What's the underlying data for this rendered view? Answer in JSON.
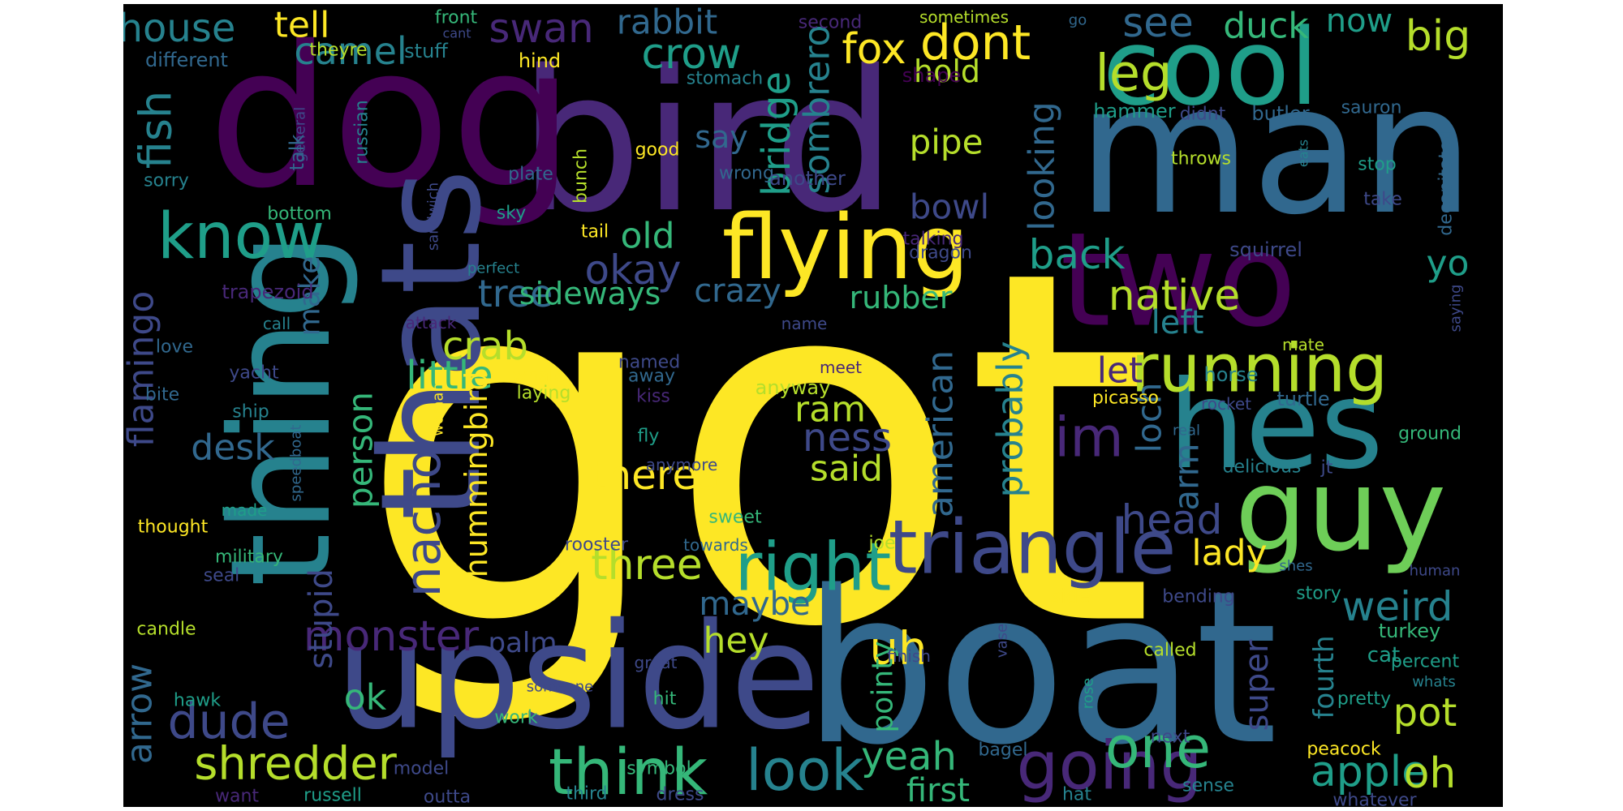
{
  "background": "#000000",
  "palette": [
    "#440154",
    "#482878",
    "#3e4989",
    "#31688e",
    "#26828e",
    "#1f9e89",
    "#35b779",
    "#6ece58",
    "#b5de2b",
    "#fde725"
  ],
  "words": [
    {
      "text": "got",
      "weight": 100,
      "color": "#fde725"
    },
    {
      "text": "boat",
      "weight": 58,
      "color": "#31688e"
    },
    {
      "text": "bird",
      "weight": 52,
      "color": "#482878"
    },
    {
      "text": "dog",
      "weight": 50,
      "color": "#440154"
    },
    {
      "text": "man",
      "weight": 46,
      "color": "#31688e"
    },
    {
      "text": "upside",
      "weight": 40,
      "color": "#3e4989"
    },
    {
      "text": "thats",
      "weight": 38,
      "color": "#3e4989"
    },
    {
      "text": "hes",
      "weight": 36,
      "color": "#26828e"
    },
    {
      "text": "thing",
      "weight": 34,
      "color": "#26828e"
    },
    {
      "text": "two",
      "weight": 33,
      "color": "#440154"
    },
    {
      "text": "cool",
      "weight": 30,
      "color": "#1f9e89"
    },
    {
      "text": "guy",
      "weight": 28,
      "color": "#6ece58"
    },
    {
      "text": "flying",
      "weight": 27,
      "color": "#fde725"
    },
    {
      "text": "triangle",
      "weight": 22,
      "color": "#3e4989"
    },
    {
      "text": "right",
      "weight": 19,
      "color": "#1f9e89"
    },
    {
      "text": "know",
      "weight": 19,
      "color": "#1f9e89"
    },
    {
      "text": "running",
      "weight": 19,
      "color": "#b5de2b"
    },
    {
      "text": "going",
      "weight": 18,
      "color": "#482878"
    },
    {
      "text": "think",
      "weight": 17,
      "color": "#35b779"
    },
    {
      "text": "one",
      "weight": 17,
      "color": "#35b779"
    },
    {
      "text": "look",
      "weight": 16,
      "color": "#26828e"
    },
    {
      "text": "shredder",
      "weight": 14,
      "color": "#b5de2b"
    },
    {
      "text": "im",
      "weight": 15,
      "color": "#482878"
    },
    {
      "text": "nacho",
      "weight": 14,
      "color": "#3e4989"
    },
    {
      "text": "dude",
      "weight": 14,
      "color": "#3e4989"
    },
    {
      "text": "monster",
      "weight": 13,
      "color": "#482878"
    },
    {
      "text": "native",
      "weight": 13,
      "color": "#b5de2b"
    },
    {
      "text": "uh",
      "weight": 14,
      "color": "#fde725"
    },
    {
      "text": "apple",
      "weight": 13,
      "color": "#1f9e89"
    },
    {
      "text": "weird",
      "weight": 12,
      "color": "#26828e"
    },
    {
      "text": "leg",
      "weight": 15,
      "color": "#b5de2b"
    },
    {
      "text": "dont",
      "weight": 15,
      "color": "#fde725"
    },
    {
      "text": "house",
      "weight": 12,
      "color": "#26828e"
    },
    {
      "text": "swan",
      "weight": 12,
      "color": "#482878"
    },
    {
      "text": "rabbit",
      "weight": 11,
      "color": "#31688e"
    },
    {
      "text": "camel",
      "weight": 12,
      "color": "#26828e"
    },
    {
      "text": "crow",
      "weight": 13,
      "color": "#1f9e89"
    },
    {
      "text": "fox",
      "weight": 12,
      "color": "#fde725"
    },
    {
      "text": "see",
      "weight": 12,
      "color": "#31688e"
    },
    {
      "text": "duck",
      "weight": 11,
      "color": "#35b779"
    },
    {
      "text": "now",
      "weight": 10,
      "color": "#1f9e89"
    },
    {
      "text": "big",
      "weight": 13,
      "color": "#b5de2b"
    },
    {
      "text": "tell",
      "weight": 11,
      "color": "#fde725"
    },
    {
      "text": "fish",
      "weight": 13,
      "color": "#26828e"
    },
    {
      "text": "bridge",
      "weight": 12,
      "color": "#1f9e89"
    },
    {
      "text": "sombrero",
      "weight": 11,
      "color": "#26828e"
    },
    {
      "text": "hold",
      "weight": 10,
      "color": "#b5de2b"
    },
    {
      "text": "pipe",
      "weight": 11,
      "color": "#b5de2b"
    },
    {
      "text": "bowl",
      "weight": 11,
      "color": "#3e4989"
    },
    {
      "text": "say",
      "weight": 10,
      "color": "#31688e"
    },
    {
      "text": "back",
      "weight": 12,
      "color": "#1f9e89"
    },
    {
      "text": "looking",
      "weight": 11,
      "color": "#31688e"
    },
    {
      "text": "okay",
      "weight": 12,
      "color": "#3e4989"
    },
    {
      "text": "tree",
      "weight": 12,
      "color": "#31688e"
    },
    {
      "text": "sideways",
      "weight": 9,
      "color": "#35b779"
    },
    {
      "text": "crazy",
      "weight": 10,
      "color": "#31688e"
    },
    {
      "text": "rubber",
      "weight": 10,
      "color": "#35b779"
    },
    {
      "text": "old",
      "weight": 11,
      "color": "#35b779"
    },
    {
      "text": "crab",
      "weight": 12,
      "color": "#b5de2b"
    },
    {
      "text": "little",
      "weight": 12,
      "color": "#35b779"
    },
    {
      "text": "person",
      "weight": 11,
      "color": "#35b779"
    },
    {
      "text": "flamingo",
      "weight": 11,
      "color": "#3e4989"
    },
    {
      "text": "make",
      "weight": 9,
      "color": "#31688e"
    },
    {
      "text": "desk",
      "weight": 11,
      "color": "#31688e"
    },
    {
      "text": "stupid",
      "weight": 10,
      "color": "#3e4989"
    },
    {
      "text": "hummingbird",
      "weight": 10,
      "color": "#fde725"
    },
    {
      "text": "theres",
      "weight": 13,
      "color": "#fde725"
    },
    {
      "text": "ram",
      "weight": 11,
      "color": "#b5de2b"
    },
    {
      "text": "ness",
      "weight": 12,
      "color": "#3e4989"
    },
    {
      "text": "said",
      "weight": 11,
      "color": "#b5de2b"
    },
    {
      "text": "american",
      "weight": 11,
      "color": "#31688e"
    },
    {
      "text": "probably",
      "weight": 11,
      "color": "#26828e"
    },
    {
      "text": "let",
      "weight": 11,
      "color": "#482878"
    },
    {
      "text": "loch",
      "weight": 11,
      "color": "#31688e"
    },
    {
      "text": "arm",
      "weight": 11,
      "color": "#31688e"
    },
    {
      "text": "left",
      "weight": 10,
      "color": "#26828e"
    },
    {
      "text": "yo",
      "weight": 11,
      "color": "#1f9e89"
    },
    {
      "text": "three",
      "weight": 13,
      "color": "#b5de2b"
    },
    {
      "text": "maybe",
      "weight": 10,
      "color": "#31688e"
    },
    {
      "text": "hey",
      "weight": 11,
      "color": "#b5de2b"
    },
    {
      "text": "head",
      "weight": 13,
      "color": "#3e4989"
    },
    {
      "text": "lady",
      "weight": 12,
      "color": "#fde725"
    },
    {
      "text": "super",
      "weight": 11,
      "color": "#3e4989"
    },
    {
      "text": "pot",
      "weight": 12,
      "color": "#b5de2b"
    },
    {
      "text": "oh",
      "weight": 13,
      "color": "#b5de2b"
    },
    {
      "text": "yeah",
      "weight": 12,
      "color": "#35b779"
    },
    {
      "text": "first",
      "weight": 11,
      "color": "#35b779"
    },
    {
      "text": "pointy",
      "weight": 10,
      "color": "#35b779"
    },
    {
      "text": "palm",
      "weight": 9,
      "color": "#3e4989"
    },
    {
      "text": "ok",
      "weight": 11,
      "color": "#35b779"
    },
    {
      "text": "arrow",
      "weight": 11,
      "color": "#31688e"
    },
    {
      "text": "fourth",
      "weight": 9,
      "color": "#26828e"
    },
    {
      "text": "different",
      "weight": 8,
      "color": "#31688e"
    },
    {
      "text": "front",
      "weight": 7,
      "color": "#35b779"
    },
    {
      "text": "hind",
      "weight": 7,
      "color": "#fde725"
    },
    {
      "text": "theyre",
      "weight": 7,
      "color": "#b5de2b"
    },
    {
      "text": "stuff",
      "weight": 7,
      "color": "#26828e"
    },
    {
      "text": "second",
      "weight": 7,
      "color": "#482878"
    },
    {
      "text": "sometimes",
      "weight": 7,
      "color": "#b5de2b"
    },
    {
      "text": "shape",
      "weight": 7,
      "color": "#440154"
    },
    {
      "text": "stomach",
      "weight": 7,
      "color": "#26828e"
    },
    {
      "text": "hammer",
      "weight": 7,
      "color": "#1f9e89"
    },
    {
      "text": "didnt",
      "weight": 7,
      "color": "#3e4989"
    },
    {
      "text": "butler",
      "weight": 7,
      "color": "#31688e"
    },
    {
      "text": "sauron",
      "weight": 7,
      "color": "#31688e"
    },
    {
      "text": "eats",
      "weight": 6,
      "color": "#26828e"
    },
    {
      "text": "throws",
      "weight": 7,
      "color": "#b5de2b"
    },
    {
      "text": "stop",
      "weight": 7,
      "color": "#1f9e89"
    },
    {
      "text": "take",
      "weight": 7,
      "color": "#3e4989"
    },
    {
      "text": "decapitated",
      "weight": 7,
      "color": "#31688e"
    },
    {
      "text": "general",
      "weight": 6,
      "color": "#3e4989"
    },
    {
      "text": "russian",
      "weight": 7,
      "color": "#26828e"
    },
    {
      "text": "talk",
      "weight": 7,
      "color": "#31688e"
    },
    {
      "text": "good",
      "weight": 7,
      "color": "#fde725"
    },
    {
      "text": "plate",
      "weight": 7,
      "color": "#31688e"
    },
    {
      "text": "bunch",
      "weight": 7,
      "color": "#b5de2b"
    },
    {
      "text": "wrong",
      "weight": 7,
      "color": "#31688e"
    },
    {
      "text": "another",
      "weight": 7,
      "color": "#3e4989"
    },
    {
      "text": "sorry",
      "weight": 7,
      "color": "#26828e"
    },
    {
      "text": "bottom",
      "weight": 7,
      "color": "#35b779"
    },
    {
      "text": "sandwich",
      "weight": 6,
      "color": "#3e4989"
    },
    {
      "text": "sky",
      "weight": 7,
      "color": "#1f9e89"
    },
    {
      "text": "tail",
      "weight": 7,
      "color": "#fde725"
    },
    {
      "text": "talking",
      "weight": 7,
      "color": "#482878"
    },
    {
      "text": "dragon",
      "weight": 7,
      "color": "#3e4989"
    },
    {
      "text": "squirrel",
      "weight": 8,
      "color": "#3e4989"
    },
    {
      "text": "trapezoid",
      "weight": 8,
      "color": "#482878"
    },
    {
      "text": "perfect",
      "weight": 6,
      "color": "#26828e"
    },
    {
      "text": "call",
      "weight": 6,
      "color": "#26828e"
    },
    {
      "text": "attack",
      "weight": 6,
      "color": "#482878"
    },
    {
      "text": "love",
      "weight": 7,
      "color": "#31688e"
    },
    {
      "text": "name",
      "weight": 6,
      "color": "#3e4989"
    },
    {
      "text": "mate",
      "weight": 6,
      "color": "#b5de2b"
    },
    {
      "text": "saying",
      "weight": 6,
      "color": "#3e4989"
    },
    {
      "text": "yacht",
      "weight": 7,
      "color": "#3e4989"
    },
    {
      "text": "whale",
      "weight": 7,
      "color": "#fde725"
    },
    {
      "text": "named",
      "weight": 7,
      "color": "#3e4989"
    },
    {
      "text": "meet",
      "weight": 6,
      "color": "#482878"
    },
    {
      "text": "away",
      "weight": 7,
      "color": "#31688e"
    },
    {
      "text": "laying",
      "weight": 7,
      "color": "#b5de2b"
    },
    {
      "text": "kiss",
      "weight": 7,
      "color": "#482878"
    },
    {
      "text": "anyway",
      "weight": 8,
      "color": "#b5de2b"
    },
    {
      "text": "horse",
      "weight": 7,
      "color": "#26828e"
    },
    {
      "text": "turtle",
      "weight": 7,
      "color": "#31688e"
    },
    {
      "text": "bite",
      "weight": 7,
      "color": "#31688e"
    },
    {
      "text": "ship",
      "weight": 7,
      "color": "#26828e"
    },
    {
      "text": "picasso",
      "weight": 7,
      "color": "#fde725"
    },
    {
      "text": "rocket",
      "weight": 7,
      "color": "#3e4989"
    },
    {
      "text": "speedboat",
      "weight": 6,
      "color": "#31688e"
    },
    {
      "text": "woman",
      "weight": 6,
      "color": "#fde725"
    },
    {
      "text": "real",
      "weight": 6,
      "color": "#31688e"
    },
    {
      "text": "ground",
      "weight": 7,
      "color": "#35b779"
    },
    {
      "text": "fly",
      "weight": 7,
      "color": "#1f9e89"
    },
    {
      "text": "delicious",
      "weight": 7,
      "color": "#26828e"
    },
    {
      "text": "jt",
      "weight": 6,
      "color": "#3e4989"
    },
    {
      "text": "anymore",
      "weight": 6,
      "color": "#3e4989"
    },
    {
      "text": "made",
      "weight": 7,
      "color": "#1f9e89"
    },
    {
      "text": "sweet",
      "weight": 7,
      "color": "#35b779"
    },
    {
      "text": "thought",
      "weight": 7,
      "color": "#fde725"
    },
    {
      "text": "rooster",
      "weight": 7,
      "color": "#3e4989"
    },
    {
      "text": "towards",
      "weight": 6,
      "color": "#31688e"
    },
    {
      "text": "joe",
      "weight": 7,
      "color": "#b5de2b"
    },
    {
      "text": "military",
      "weight": 7,
      "color": "#35b779"
    },
    {
      "text": "seal",
      "weight": 7,
      "color": "#3e4989"
    },
    {
      "text": "shes",
      "weight": 6,
      "color": "#31688e"
    },
    {
      "text": "human",
      "weight": 6,
      "color": "#3e4989"
    },
    {
      "text": "story",
      "weight": 7,
      "color": "#1f9e89"
    },
    {
      "text": "bending",
      "weight": 7,
      "color": "#3e4989"
    },
    {
      "text": "side",
      "weight": 7,
      "color": "#fde725"
    },
    {
      "text": "candle",
      "weight": 7,
      "color": "#b5de2b"
    },
    {
      "text": "cat",
      "weight": 8,
      "color": "#1f9e89"
    },
    {
      "text": "turkey",
      "weight": 7,
      "color": "#35b779"
    },
    {
      "text": "called",
      "weight": 7,
      "color": "#b5de2b"
    },
    {
      "text": "vase",
      "weight": 6,
      "color": "#3e4989"
    },
    {
      "text": "great",
      "weight": 6,
      "color": "#3e4989"
    },
    {
      "text": "finish",
      "weight": 6,
      "color": "#3e4989"
    },
    {
      "text": "percent",
      "weight": 7,
      "color": "#1f9e89"
    },
    {
      "text": "whats",
      "weight": 6,
      "color": "#26828e"
    },
    {
      "text": "hawk",
      "weight": 7,
      "color": "#1f9e89"
    },
    {
      "text": "someone",
      "weight": 6,
      "color": "#3e4989"
    },
    {
      "text": "hit",
      "weight": 7,
      "color": "#35b779"
    },
    {
      "text": "rose",
      "weight": 6,
      "color": "#1f9e89"
    },
    {
      "text": "pretty",
      "weight": 7,
      "color": "#1f9e89"
    },
    {
      "text": "work",
      "weight": 7,
      "color": "#35b779"
    },
    {
      "text": "bagel",
      "weight": 7,
      "color": "#31688e"
    },
    {
      "text": "next",
      "weight": 7,
      "color": "#3e4989"
    },
    {
      "text": "peacock",
      "weight": 7,
      "color": "#fde725"
    },
    {
      "text": "model",
      "weight": 7,
      "color": "#3e4989"
    },
    {
      "text": "symbol",
      "weight": 7,
      "color": "#35b779"
    },
    {
      "text": "dress",
      "weight": 7,
      "color": "#3e4989"
    },
    {
      "text": "third",
      "weight": 7,
      "color": "#26828e"
    },
    {
      "text": "want",
      "weight": 7,
      "color": "#482878"
    },
    {
      "text": "russell",
      "weight": 7,
      "color": "#1f9e89"
    },
    {
      "text": "outta",
      "weight": 7,
      "color": "#3e4989"
    },
    {
      "text": "hat",
      "weight": 7,
      "color": "#26828e"
    },
    {
      "text": "sense",
      "weight": 7,
      "color": "#26828e"
    },
    {
      "text": "whatever",
      "weight": 7,
      "color": "#3e4989"
    },
    {
      "text": "go",
      "weight": 6,
      "color": "#31688e"
    },
    {
      "text": "cant",
      "weight": 5,
      "color": "#3e4989"
    }
  ]
}
